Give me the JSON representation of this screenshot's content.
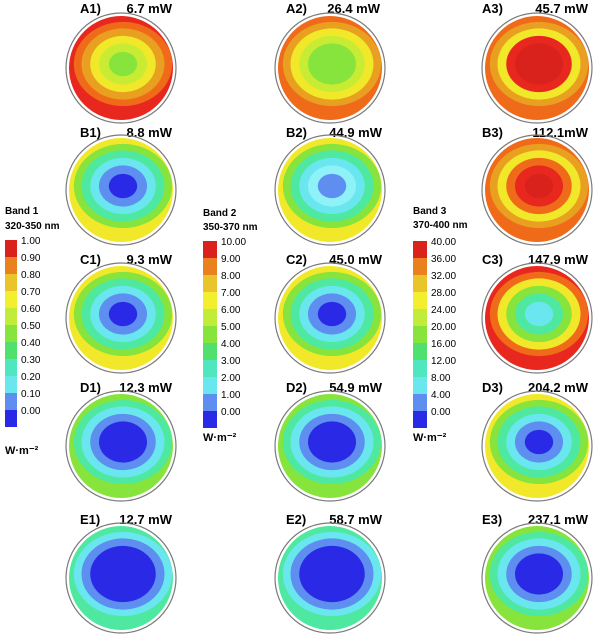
{
  "panels": [
    {
      "label": "A1)",
      "power": "6.7 mW",
      "colors": [
        "#e8281e",
        "#ef6b1a",
        "#e9a020",
        "#f2e82a",
        "#c8ec34",
        "#86e43c"
      ]
    },
    {
      "label": "A2)",
      "power": "26.4 mW",
      "colors": [
        "#ef6b1a",
        "#e9a020",
        "#f2e82a",
        "#c8ec34",
        "#86e43c",
        "#86e43c"
      ]
    },
    {
      "label": "A3)",
      "power": "45.7 mW",
      "colors": [
        "#ef6b1a",
        "#e9a020",
        "#f2e82a",
        "#e8281e",
        "#d9221b",
        "#d9221b"
      ]
    },
    {
      "label": "B1)",
      "power": "8.8 mW",
      "colors": [
        "#f2e82a",
        "#86e43c",
        "#4fe8a0",
        "#69e6ee",
        "#5d8ef0",
        "#2a2ae6"
      ]
    },
    {
      "label": "B2)",
      "power": "44.9 mW",
      "colors": [
        "#f2e82a",
        "#86e43c",
        "#4fe8a0",
        "#69e6ee",
        "#8ff2f8",
        "#5d8ef0"
      ]
    },
    {
      "label": "B3)",
      "power": "112.1mW",
      "colors": [
        "#ef6b1a",
        "#e9a020",
        "#f2e82a",
        "#ef6b1a",
        "#e8281e",
        "#d9221b"
      ]
    },
    {
      "label": "C1)",
      "power": "9.3 mW",
      "colors": [
        "#f2e82a",
        "#86e43c",
        "#4fe8a0",
        "#69e6ee",
        "#5d8ef0",
        "#2a2ae6"
      ]
    },
    {
      "label": "C2)",
      "power": "45.0 mW",
      "colors": [
        "#f2e82a",
        "#86e43c",
        "#4fe8a0",
        "#69e6ee",
        "#5d8ef0",
        "#2a2ae6"
      ]
    },
    {
      "label": "C3)",
      "power": "147.9 mW",
      "colors": [
        "#e8281e",
        "#ef6b1a",
        "#f2e82a",
        "#86e43c",
        "#4fe8a0",
        "#69e6ee"
      ]
    },
    {
      "label": "D1)",
      "power": "12.3 mW",
      "colors": [
        "#86e43c",
        "#4fe8a0",
        "#69e6ee",
        "#5d8ef0",
        "#2a2ae6",
        "#2a2ae6"
      ]
    },
    {
      "label": "D2)",
      "power": "54.9 mW",
      "colors": [
        "#86e43c",
        "#4fe8a0",
        "#69e6ee",
        "#5d8ef0",
        "#2a2ae6",
        "#2a2ae6"
      ]
    },
    {
      "label": "D3)",
      "power": "204.2 mW",
      "colors": [
        "#f2e82a",
        "#86e43c",
        "#4fe8a0",
        "#69e6ee",
        "#5d8ef0",
        "#2a2ae6"
      ]
    },
    {
      "label": "E1)",
      "power": "12.7 mW",
      "colors": [
        "#4fe8a0",
        "#69e6ee",
        "#5d8ef0",
        "#2a2ae6",
        "#2a2ae6",
        "#2a2ae6"
      ]
    },
    {
      "label": "E2)",
      "power": "58.7 mW",
      "colors": [
        "#4fe8a0",
        "#69e6ee",
        "#5d8ef0",
        "#2a2ae6",
        "#2a2ae6",
        "#2a2ae6"
      ]
    },
    {
      "label": "E3)",
      "power": "237.1 mW",
      "colors": [
        "#86e43c",
        "#4fe8a0",
        "#69e6ee",
        "#5d8ef0",
        "#2a2ae6",
        "#2a2ae6"
      ]
    }
  ],
  "colorbars": [
    {
      "title": "Band 1",
      "range": "320-350 nm",
      "unit": "W·m⁻²",
      "ticks": [
        "1.00",
        "0.90",
        "0.80",
        "0.70",
        "0.60",
        "0.50",
        "0.40",
        "0.30",
        "0.20",
        "0.10",
        "0.00"
      ]
    },
    {
      "title": "Band 2",
      "range": "350-370 nm",
      "unit": "W·m⁻²",
      "ticks": [
        "10.00",
        "9.00",
        "8.00",
        "7.00",
        "6.00",
        "5.00",
        "4.00",
        "3.00",
        "2.00",
        "1.00",
        "0.00"
      ]
    },
    {
      "title": "Band 3",
      "range": "370-400 nm",
      "unit": "W·m⁻²",
      "ticks": [
        "40.00",
        "36.00",
        "32.00",
        "28.00",
        "24.00",
        "20.00",
        "16.00",
        "12.00",
        "8.00",
        "4.00",
        "0.00"
      ]
    }
  ],
  "colorscale": [
    "#d9221b",
    "#e9821e",
    "#e9c42a",
    "#f2f02e",
    "#c2ec3a",
    "#86e43c",
    "#4fe06e",
    "#50e6c0",
    "#69e6ee",
    "#5d8ef0",
    "#2a2ae6"
  ]
}
